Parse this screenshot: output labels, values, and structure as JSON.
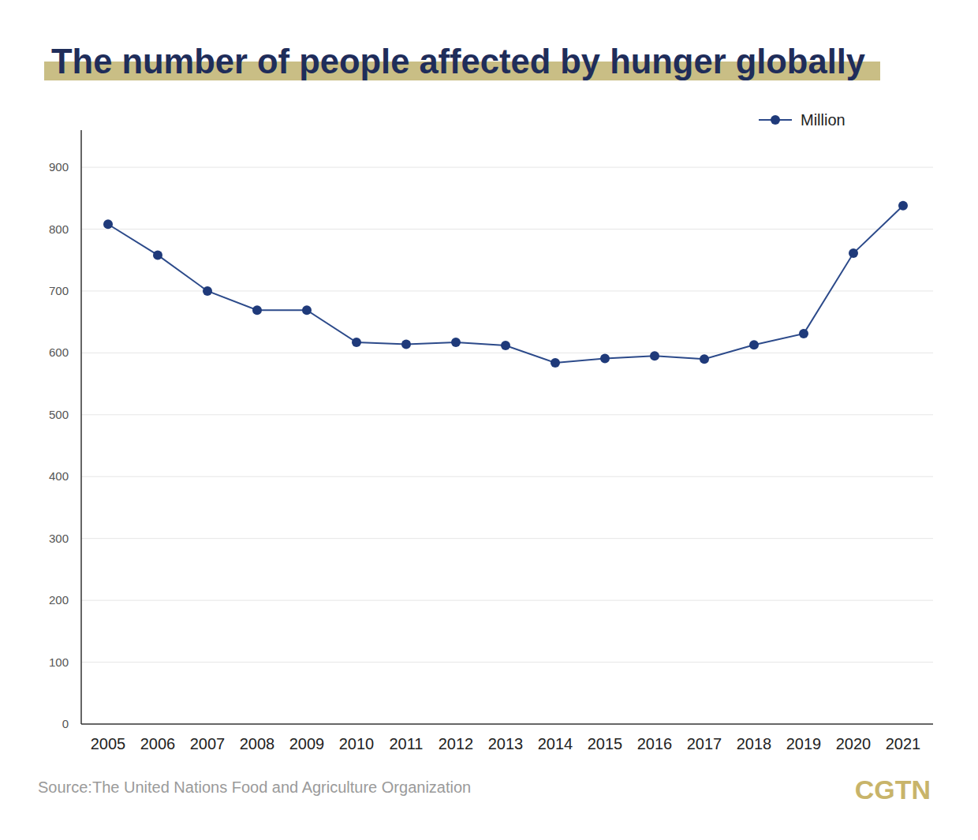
{
  "chart_data": {
    "type": "line",
    "title": "The number of people affected by hunger globally",
    "categories": [
      "2005",
      "2006",
      "2007",
      "2008",
      "2009",
      "2010",
      "2011",
      "2012",
      "2013",
      "2014",
      "2015",
      "2016",
      "2017",
      "2018",
      "2019",
      "2020",
      "2021"
    ],
    "series": [
      {
        "name": "Million",
        "color": "#2c4a8a",
        "marker": "circle",
        "values": [
          808,
          758,
          700,
          669,
          669,
          617,
          614,
          617,
          612,
          584,
          591,
          595,
          590,
          613,
          631,
          761,
          838
        ]
      }
    ],
    "ylim": [
      0,
      960
    ],
    "yticks": [
      0,
      100,
      200,
      300,
      400,
      500,
      600,
      700,
      800,
      900
    ],
    "grid": true,
    "legend": "top-right",
    "source": "Source:The United Nations Food and Agriculture Organization",
    "logo": "CGTN"
  }
}
